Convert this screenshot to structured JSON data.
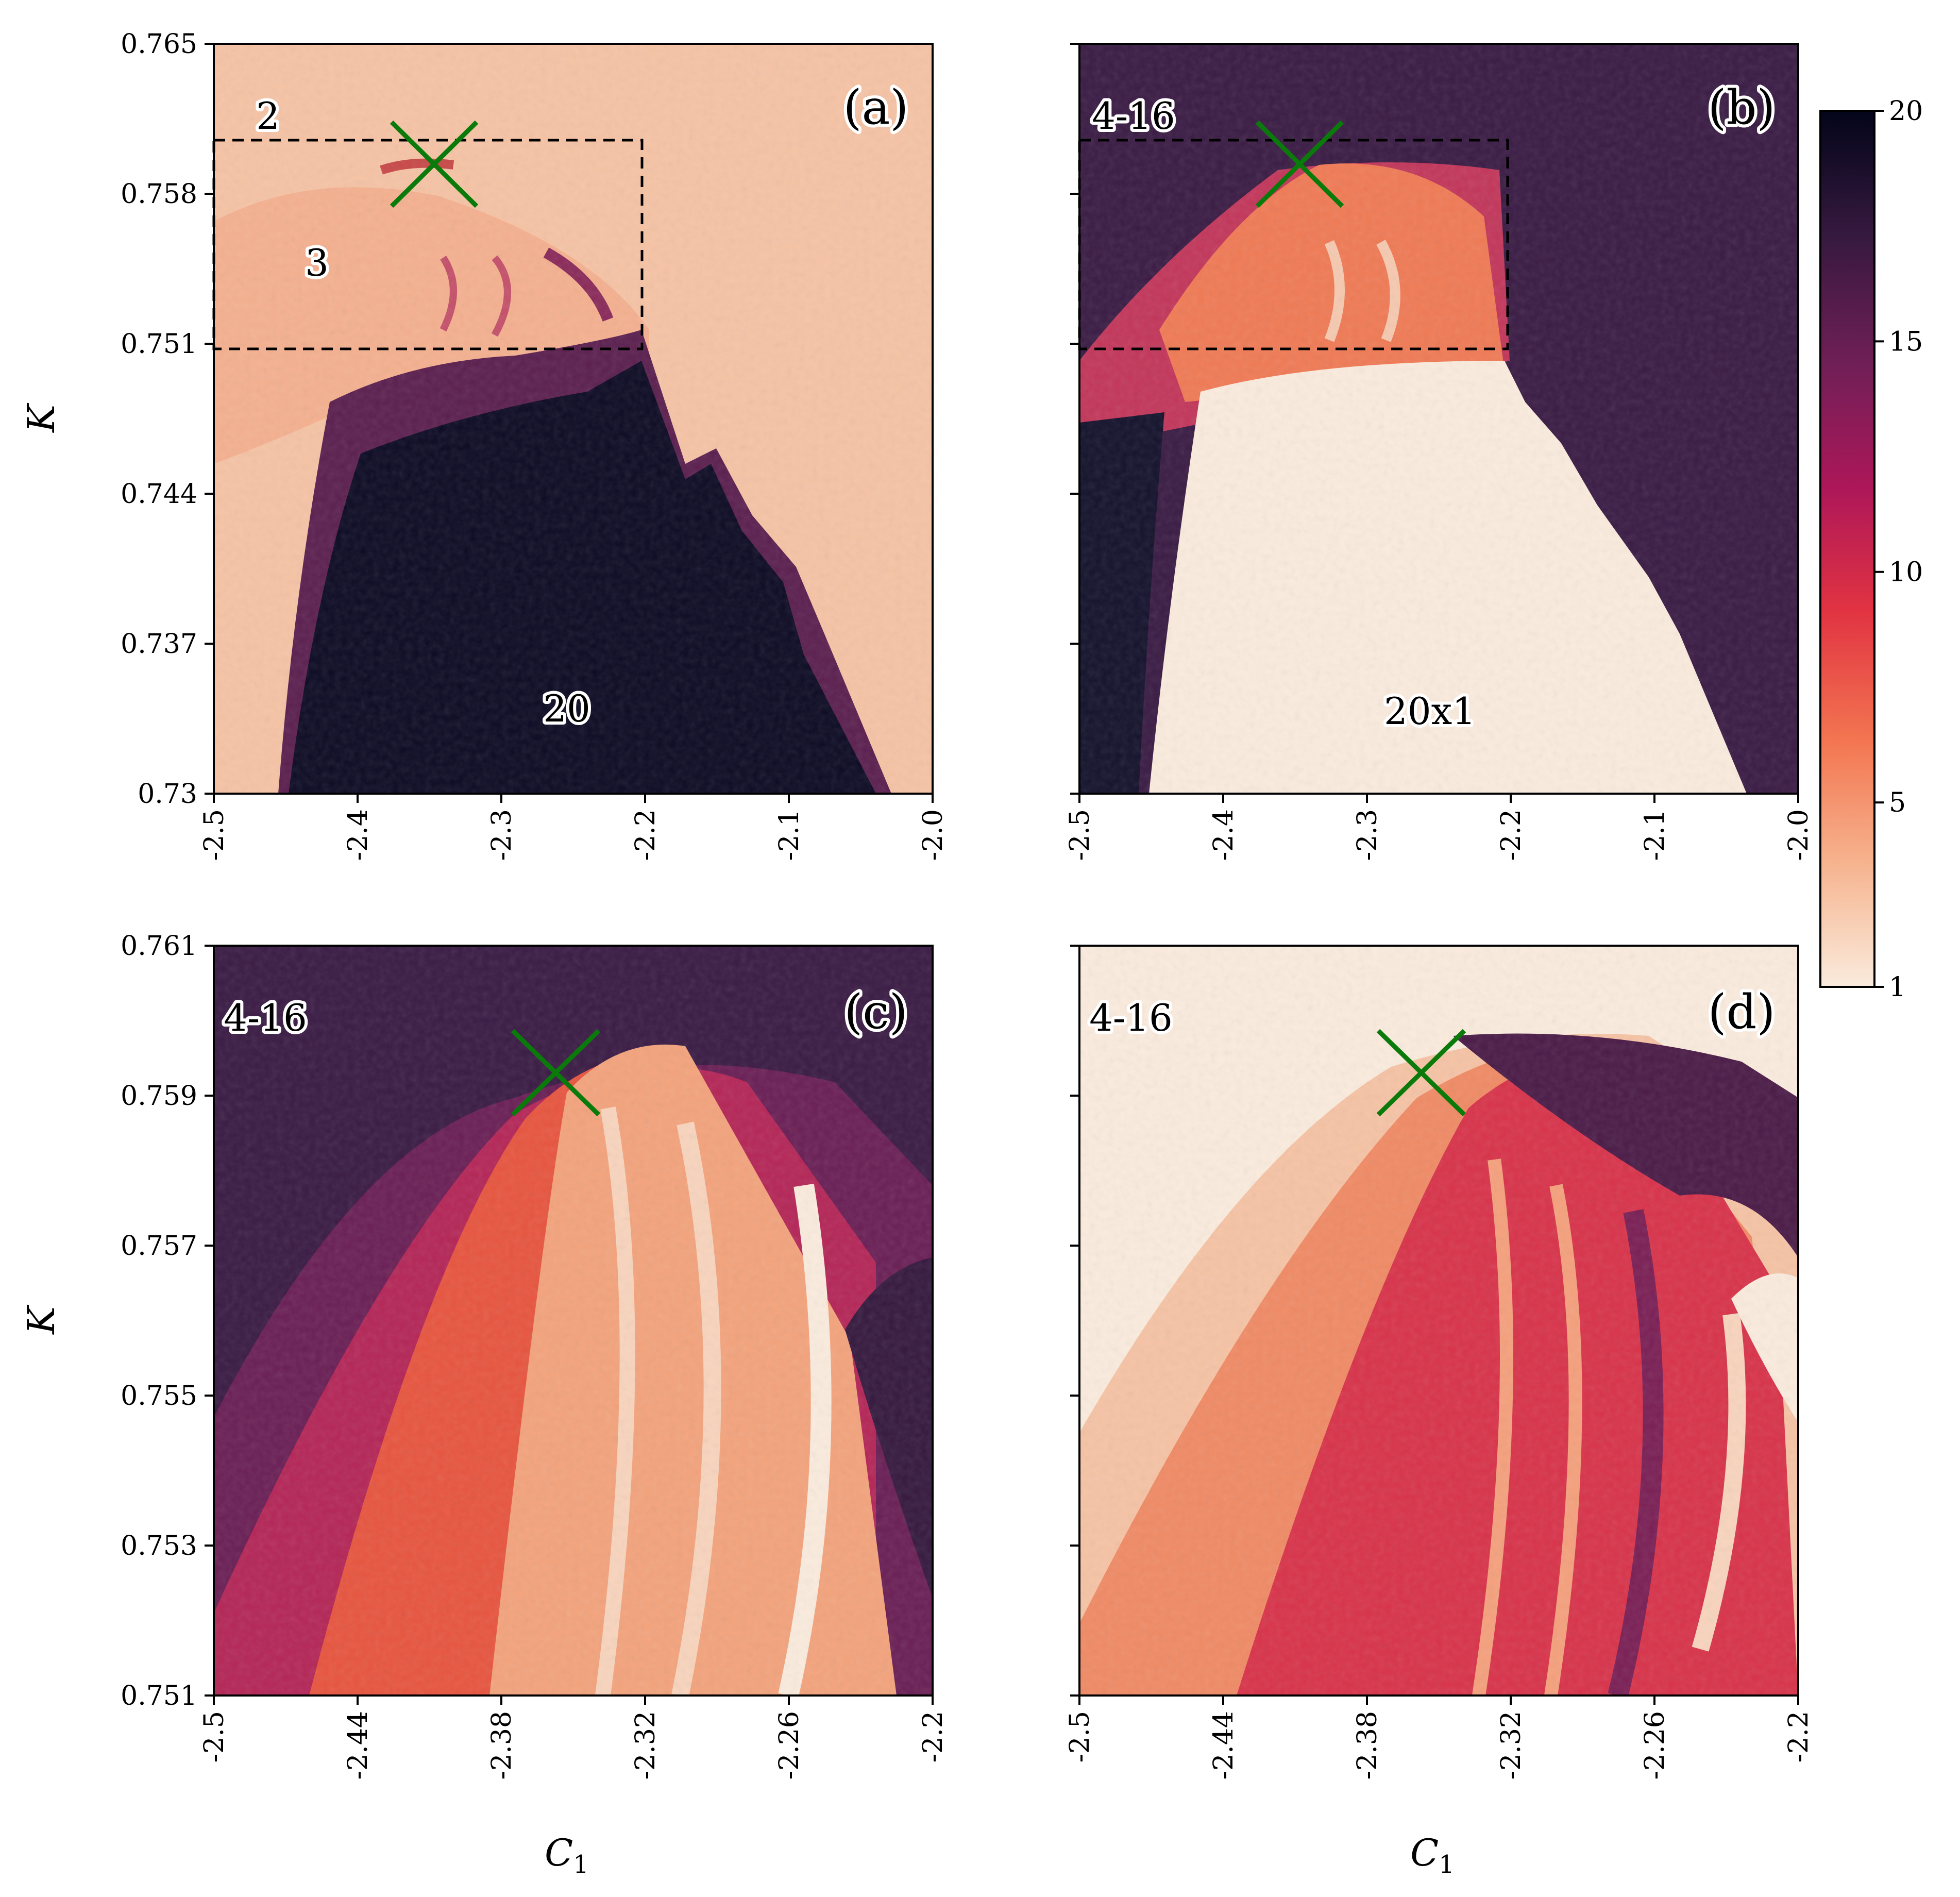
{
  "chart_data": [
    {
      "type": "heatmap",
      "panel": "(a)",
      "xlabel": "",
      "ylabel": "K",
      "xlim": [
        -2.5,
        -2.0
      ],
      "ylim": [
        0.73,
        0.765
      ],
      "xticks": [
        "-2.5",
        "-2.4",
        "-2.3",
        "-2.2",
        "-2.1",
        "-2.0"
      ],
      "yticks": [
        "0.73",
        "0.737",
        "0.744",
        "0.751",
        "0.758",
        "0.765"
      ],
      "labels": [
        "2",
        "3",
        "20"
      ],
      "marker": {
        "label": "X",
        "x": -2.347,
        "y": 0.7591,
        "color": "#0a7a0a"
      },
      "box": {
        "x0": -2.5,
        "x1": -2.2,
        "y0": 0.751,
        "y1": 0.7607
      },
      "ytick_labels_visible": true
    },
    {
      "type": "heatmap",
      "panel": "(b)",
      "xlabel": "",
      "ylabel": "",
      "xlim": [
        -2.5,
        -2.0
      ],
      "ylim": [
        0.73,
        0.765
      ],
      "xticks": [
        "-2.5",
        "-2.4",
        "-2.3",
        "-2.2",
        "-2.1",
        "-2.0"
      ],
      "yticks": [
        "0.73",
        "0.737",
        "0.744",
        "0.751",
        "0.758",
        "0.765"
      ],
      "labels": [
        "4-16",
        "20x1"
      ],
      "marker": {
        "label": "X",
        "x": -2.347,
        "y": 0.7591,
        "color": "#0a7a0a"
      },
      "box": {
        "x0": -2.5,
        "x1": -2.2,
        "y0": 0.751,
        "y1": 0.7607
      },
      "ytick_labels_visible": false
    },
    {
      "type": "heatmap",
      "panel": "(c)",
      "xlabel": "C1",
      "ylabel": "K",
      "xlim": [
        -2.5,
        -2.2
      ],
      "ylim": [
        0.751,
        0.761
      ],
      "xticks": [
        "-2.5",
        "-2.44",
        "-2.38",
        "-2.32",
        "-2.26",
        "-2.2"
      ],
      "yticks": [
        "0.751",
        "0.753",
        "0.755",
        "0.757",
        "0.759",
        "0.761"
      ],
      "labels": [
        "4-16"
      ],
      "marker": {
        "label": "X",
        "x": -2.352,
        "y": 0.75935,
        "color": "#0a7a0a"
      },
      "ytick_labels_visible": true
    },
    {
      "type": "heatmap",
      "panel": "(d)",
      "xlabel": "C1",
      "ylabel": "",
      "xlim": [
        -2.5,
        -2.2
      ],
      "ylim": [
        0.751,
        0.761
      ],
      "xticks": [
        "-2.5",
        "-2.44",
        "-2.38",
        "-2.32",
        "-2.26",
        "-2.2"
      ],
      "yticks": [
        "0.751",
        "0.753",
        "0.755",
        "0.757",
        "0.759",
        "0.761"
      ],
      "labels": [
        "4-16"
      ],
      "marker": {
        "label": "X",
        "x": -2.352,
        "y": 0.75935,
        "color": "#0a7a0a"
      },
      "ytick_labels_visible": false
    }
  ],
  "colorbar": {
    "vmin": 1,
    "vmax": 20,
    "ticks": [
      "1",
      "5",
      "10",
      "15",
      "20"
    ],
    "tick_values": [
      1,
      5,
      10,
      15,
      20
    ],
    "colormap": "rocket_r",
    "colors": [
      "#faebdd",
      "#f6b48f",
      "#f37651",
      "#e13342",
      "#ad1759",
      "#701f57",
      "#35193e",
      "#03051a"
    ]
  }
}
